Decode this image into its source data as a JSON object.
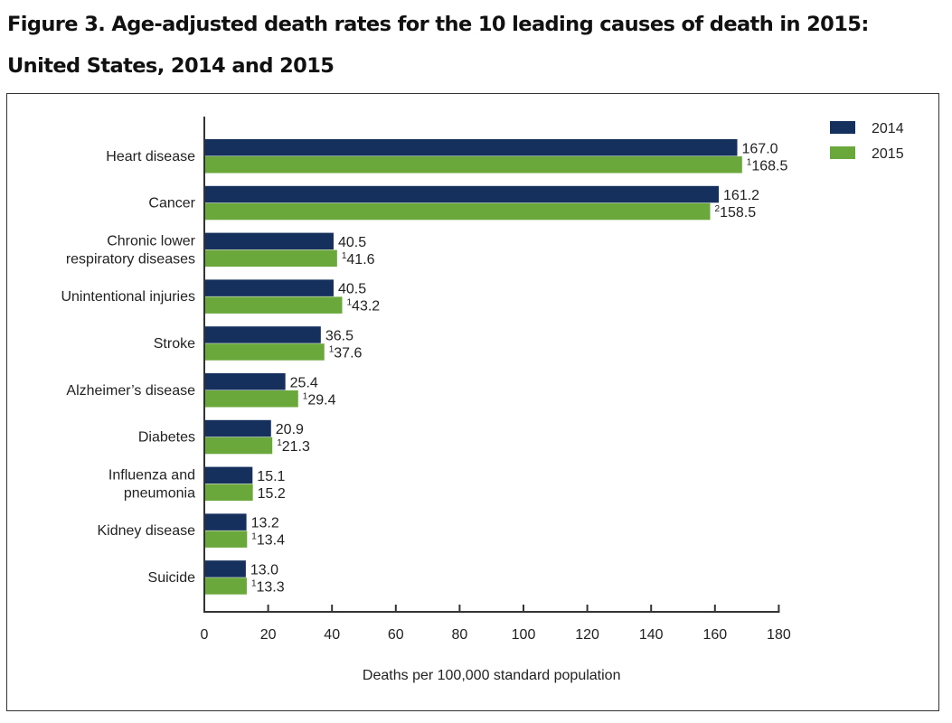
{
  "figure": {
    "title": "Figure 3. Age-adjusted death rates for the 10 leading causes of death in 2015: United States, 2014 and 2015"
  },
  "colors": {
    "series_2014": "#16305e",
    "series_2015": "#6aa83b",
    "axis": "#333333",
    "text": "#222222"
  },
  "chart_data": {
    "type": "bar",
    "orientation": "horizontal",
    "categories": [
      [
        "Heart disease"
      ],
      [
        "Cancer"
      ],
      [
        "Chronic lower",
        "respiratory diseases"
      ],
      [
        "Unintentional injuries"
      ],
      [
        "Stroke"
      ],
      [
        "Alzheimer’s disease"
      ],
      [
        "Diabetes"
      ],
      [
        "Influenza and",
        "pneumonia"
      ],
      [
        "Kidney disease"
      ],
      [
        "Suicide"
      ]
    ],
    "series": [
      {
        "name": "2014",
        "values": [
          167.0,
          161.2,
          40.5,
          40.5,
          36.5,
          25.4,
          20.9,
          15.1,
          13.2,
          13.0
        ],
        "labels": [
          "167.0",
          "161.2",
          "40.5",
          "40.5",
          "36.5",
          "25.4",
          "20.9",
          "15.1",
          "13.2",
          "13.0"
        ],
        "footnotes": [
          "",
          "",
          "",
          "",
          "",
          "",
          "",
          "",
          "",
          ""
        ]
      },
      {
        "name": "2015",
        "values": [
          168.5,
          158.5,
          41.6,
          43.2,
          37.6,
          29.4,
          21.3,
          15.2,
          13.4,
          13.3
        ],
        "labels": [
          "168.5",
          "158.5",
          "41.6",
          "43.2",
          "37.6",
          "29.4",
          "21.3",
          "15.2",
          "13.4",
          "13.3"
        ],
        "footnotes": [
          "1",
          "2",
          "1",
          "1",
          "1",
          "1",
          "1",
          "",
          "1",
          "1"
        ]
      }
    ],
    "xlabel": "Deaths per 100,000 standard population",
    "ylabel": "",
    "xlim": [
      0,
      180
    ],
    "xticks": [
      0,
      20,
      40,
      60,
      80,
      100,
      120,
      140,
      160,
      180
    ],
    "grid": false,
    "legend": "top-right"
  }
}
